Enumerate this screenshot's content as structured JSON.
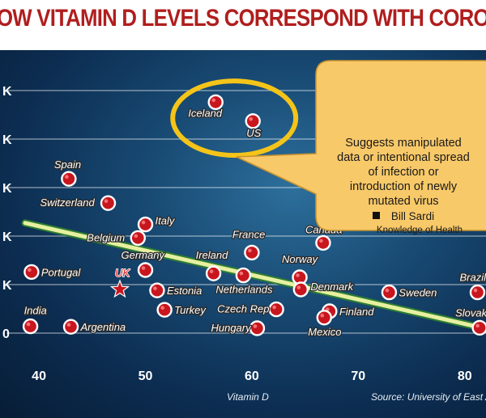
{
  "title": "OW VITAMIN D LEVELS CORRESPOND WITH CORONAVIRUS OUTBREAK",
  "callout": {
    "lines": [
      "Suggests manipulated",
      "data or intentional spread",
      "of infection or",
      "introduction of newly",
      "mutated virus"
    ],
    "author": "Bill Sardi",
    "org": "Knowledge of Health"
  },
  "chart_data": {
    "type": "scatter",
    "xlabel": "Vitamin D",
    "source": "Source: University of East A",
    "x_ticks": [
      "40",
      "50",
      "60",
      "70",
      "80"
    ],
    "y_ticks": [
      "K",
      "K",
      "K",
      "K",
      "K",
      "0"
    ],
    "xlim": [
      38.7,
      82
    ],
    "ylim": [
      -0.5,
      5.2
    ],
    "points": [
      {
        "name": "Iceland",
        "x": 56.6,
        "y": 4.76
      },
      {
        "name": "US",
        "x": 60.1,
        "y": 4.37
      },
      {
        "name": "Spain",
        "x": 42.8,
        "y": 3.18
      },
      {
        "name": "Switzerland",
        "x": 46.5,
        "y": 2.68
      },
      {
        "name": "Italy",
        "x": 50.0,
        "y": 2.24
      },
      {
        "name": "Belgium",
        "x": 49.3,
        "y": 1.96
      },
      {
        "name": "France",
        "x": 60.0,
        "y": 1.66
      },
      {
        "name": "Canada",
        "x": 66.7,
        "y": 1.86
      },
      {
        "name": "Portugal",
        "x": 39.3,
        "y": 1.26
      },
      {
        "name": "Germany",
        "x": 50.0,
        "y": 1.3
      },
      {
        "name": "Ireland",
        "x": 56.4,
        "y": 1.23
      },
      {
        "name": "Netherlands",
        "x": 59.2,
        "y": 1.19
      },
      {
        "name": "Norway",
        "x": 64.5,
        "y": 1.15
      },
      {
        "name": "UK",
        "x": 47.6,
        "y": 0.9,
        "marker": "star"
      },
      {
        "name": "Estonia",
        "x": 51.1,
        "y": 0.88
      },
      {
        "name": "Denmark",
        "x": 64.6,
        "y": 0.9
      },
      {
        "name": "Sweden",
        "x": 72.9,
        "y": 0.84
      },
      {
        "name": "Brazil",
        "x": 81.2,
        "y": 0.84
      },
      {
        "name": "Turkey",
        "x": 51.8,
        "y": 0.48
      },
      {
        "name": "Czech Rep",
        "x": 62.3,
        "y": 0.49
      },
      {
        "name": "Finland",
        "x": 67.3,
        "y": 0.45
      },
      {
        "name": "Mexico",
        "x": 66.8,
        "y": 0.32
      },
      {
        "name": "India",
        "x": 39.2,
        "y": 0.14
      },
      {
        "name": "Argentina",
        "x": 43.0,
        "y": 0.13
      },
      {
        "name": "Hungary",
        "x": 60.5,
        "y": 0.1
      },
      {
        "name": "Slovakia",
        "x": 81.4,
        "y": 0.11
      }
    ],
    "trendline": {
      "x1": 38.7,
      "y1": 2.27,
      "x2": 81.4,
      "y2": 0.12
    },
    "highlight": {
      "shape": "ellipse",
      "around": [
        "Iceland",
        "US"
      ],
      "color": "#f5c419"
    },
    "colors": {
      "marker": "#c8161e",
      "marker_edge": "#ffffff",
      "trendline": "#e6f0a0",
      "trendline_edge": "#2e7d32",
      "grid": "#ffffff",
      "callout_fill": "#f8c969",
      "callout_edge": "#c9922e"
    }
  }
}
